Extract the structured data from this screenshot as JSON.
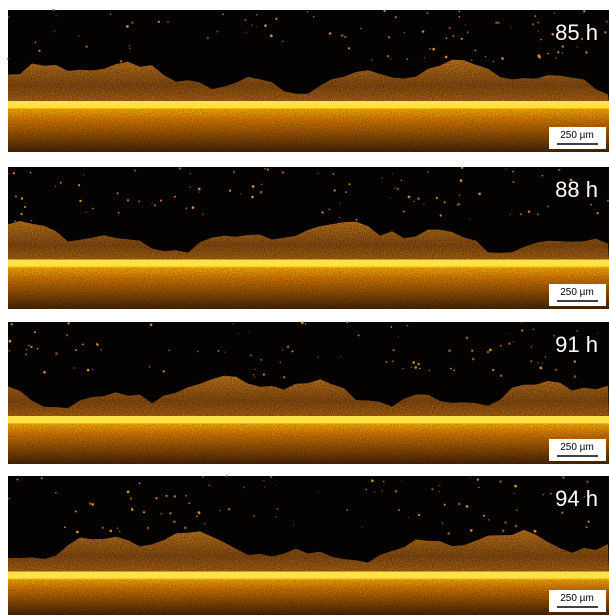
{
  "panels": [
    {
      "time": "85 h",
      "scale_bar": "250 µm"
    },
    {
      "time": "88 h",
      "scale_bar": "250 µm"
    },
    {
      "time": "91 h",
      "scale_bar": "250 µm"
    },
    {
      "time": "94 h",
      "scale_bar": "250 µm"
    }
  ]
}
